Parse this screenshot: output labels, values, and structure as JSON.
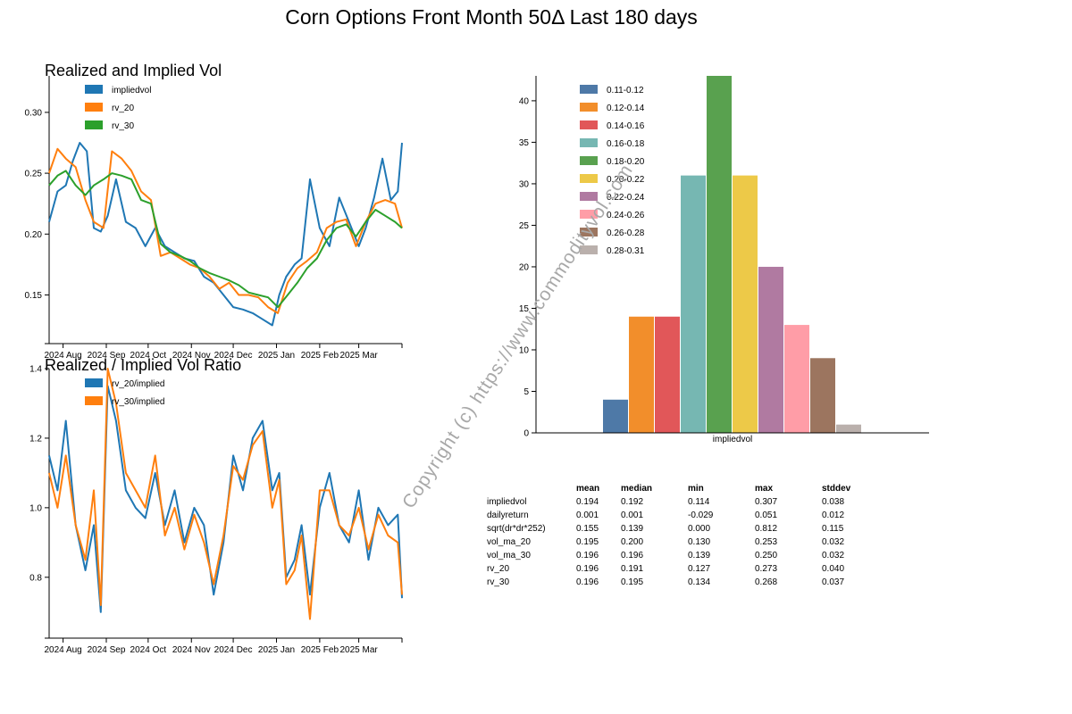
{
  "title": "Corn Options Front Month 50Δ Last 180 days",
  "watermark": "Copyright (c) https://www.commodityvol.com",
  "colors": {
    "blue": "#1f77b4",
    "orange": "#ff7f0e",
    "green": "#2ca02c",
    "hist": [
      "#4e79a7",
      "#f28e2b",
      "#e15759",
      "#76b7b2",
      "#59a14f",
      "#edc948",
      "#b07aa1",
      "#ff9da7",
      "#9c755f",
      "#bab0ac"
    ]
  },
  "chart_data": [
    {
      "type": "line",
      "title": "Realized and Implied Vol",
      "x_labels": [
        "2024 Aug",
        "2024 Sep",
        "2024 Oct",
        "2024 Nov",
        "2024 Dec",
        "2025 Jan",
        "2025 Feb",
        "2025 Mar"
      ],
      "x_range": [
        "2024-07-22",
        "2025-04-01"
      ],
      "ylim": [
        0.11,
        0.33
      ],
      "yticks": [
        "0.15",
        "0.20",
        "0.25",
        "0.30"
      ],
      "series": [
        {
          "name": "impliedvol",
          "color": "#1f77b4",
          "x": [
            "2024-07-22",
            "2024-07-28",
            "2024-08-03",
            "2024-08-08",
            "2024-08-13",
            "2024-08-18",
            "2024-08-23",
            "2024-08-28",
            "2024-09-02",
            "2024-09-08",
            "2024-09-15",
            "2024-09-22",
            "2024-09-29",
            "2024-10-06",
            "2024-10-13",
            "2024-10-20",
            "2024-10-27",
            "2024-11-03",
            "2024-11-10",
            "2024-11-17",
            "2024-11-24",
            "2024-12-01",
            "2024-12-08",
            "2024-12-15",
            "2024-12-22",
            "2024-12-29",
            "2025-01-03",
            "2025-01-08",
            "2025-01-14",
            "2025-01-19",
            "2025-01-25",
            "2025-02-01",
            "2025-02-08",
            "2025-02-15",
            "2025-02-22",
            "2025-03-01",
            "2025-03-06",
            "2025-03-12",
            "2025-03-18",
            "2025-03-24",
            "2025-03-29",
            "2025-04-01"
          ],
          "values": [
            0.21,
            0.235,
            0.24,
            0.26,
            0.275,
            0.268,
            0.205,
            0.202,
            0.215,
            0.245,
            0.21,
            0.205,
            0.19,
            0.205,
            0.19,
            0.185,
            0.18,
            0.178,
            0.165,
            0.16,
            0.15,
            0.14,
            0.138,
            0.135,
            0.13,
            0.125,
            0.15,
            0.165,
            0.175,
            0.18,
            0.245,
            0.205,
            0.19,
            0.23,
            0.21,
            0.19,
            0.205,
            0.23,
            0.262,
            0.228,
            0.235,
            0.275
          ]
        },
        {
          "name": "rv_20",
          "color": "#ff7f0e",
          "x": [
            "2024-07-22",
            "2024-07-28",
            "2024-08-03",
            "2024-08-10",
            "2024-08-17",
            "2024-08-23",
            "2024-08-30",
            "2024-09-05",
            "2024-09-12",
            "2024-09-19",
            "2024-09-26",
            "2024-10-03",
            "2024-10-10",
            "2024-10-17",
            "2024-10-24",
            "2024-10-31",
            "2024-11-07",
            "2024-11-14",
            "2024-11-21",
            "2024-11-28",
            "2024-12-05",
            "2024-12-12",
            "2024-12-19",
            "2024-12-26",
            "2025-01-02",
            "2025-01-09",
            "2025-01-16",
            "2025-01-23",
            "2025-01-30",
            "2025-02-06",
            "2025-02-13",
            "2025-02-20",
            "2025-02-27",
            "2025-03-06",
            "2025-03-13",
            "2025-03-20",
            "2025-03-27",
            "2025-04-01"
          ],
          "values": [
            0.25,
            0.27,
            0.262,
            0.255,
            0.228,
            0.21,
            0.205,
            0.268,
            0.262,
            0.252,
            0.235,
            0.228,
            0.182,
            0.185,
            0.18,
            0.175,
            0.172,
            0.165,
            0.155,
            0.16,
            0.15,
            0.15,
            0.148,
            0.14,
            0.135,
            0.16,
            0.172,
            0.178,
            0.185,
            0.205,
            0.21,
            0.212,
            0.19,
            0.21,
            0.225,
            0.228,
            0.225,
            0.205
          ]
        },
        {
          "name": "rv_30",
          "color": "#2ca02c",
          "x": [
            "2024-07-22",
            "2024-07-28",
            "2024-08-03",
            "2024-08-10",
            "2024-08-17",
            "2024-08-23",
            "2024-08-30",
            "2024-09-05",
            "2024-09-12",
            "2024-09-19",
            "2024-09-26",
            "2024-10-03",
            "2024-10-10",
            "2024-10-17",
            "2024-10-24",
            "2024-10-31",
            "2024-11-07",
            "2024-11-14",
            "2024-11-21",
            "2024-11-28",
            "2024-12-05",
            "2024-12-12",
            "2024-12-19",
            "2024-12-26",
            "2025-01-02",
            "2025-01-09",
            "2025-01-16",
            "2025-01-23",
            "2025-01-30",
            "2025-02-06",
            "2025-02-13",
            "2025-02-20",
            "2025-02-27",
            "2025-03-06",
            "2025-03-13",
            "2025-03-20",
            "2025-03-27",
            "2025-04-01"
          ],
          "values": [
            0.24,
            0.248,
            0.252,
            0.24,
            0.232,
            0.24,
            0.245,
            0.25,
            0.248,
            0.245,
            0.228,
            0.225,
            0.192,
            0.185,
            0.182,
            0.178,
            0.172,
            0.168,
            0.165,
            0.162,
            0.158,
            0.152,
            0.15,
            0.148,
            0.14,
            0.15,
            0.16,
            0.172,
            0.18,
            0.195,
            0.205,
            0.208,
            0.198,
            0.21,
            0.22,
            0.215,
            0.21,
            0.205
          ]
        }
      ]
    },
    {
      "type": "line",
      "title": "Realized / Implied Vol Ratio",
      "x_labels": [
        "2024 Aug",
        "2024 Sep",
        "2024 Oct",
        "2024 Nov",
        "2024 Dec",
        "2025 Jan",
        "2025 Feb",
        "2025 Mar"
      ],
      "x_range": [
        "2024-07-22",
        "2025-04-01"
      ],
      "ylim": [
        0.625,
        1.4
      ],
      "yticks": [
        "0.8",
        "1.0",
        "1.2",
        "1.4"
      ],
      "series": [
        {
          "name": "rv_20/implied",
          "color": "#1f77b4",
          "x": [
            "2024-07-22",
            "2024-07-28",
            "2024-08-03",
            "2024-08-10",
            "2024-08-17",
            "2024-08-23",
            "2024-08-28",
            "2024-09-02",
            "2024-09-08",
            "2024-09-15",
            "2024-09-22",
            "2024-09-29",
            "2024-10-06",
            "2024-10-13",
            "2024-10-20",
            "2024-10-27",
            "2024-11-03",
            "2024-11-10",
            "2024-11-17",
            "2024-11-24",
            "2024-12-01",
            "2024-12-08",
            "2024-12-15",
            "2024-12-22",
            "2024-12-29",
            "2025-01-03",
            "2025-01-08",
            "2025-01-14",
            "2025-01-19",
            "2025-01-25",
            "2025-02-01",
            "2025-02-08",
            "2025-02-15",
            "2025-02-22",
            "2025-03-01",
            "2025-03-08",
            "2025-03-15",
            "2025-03-22",
            "2025-03-29",
            "2025-04-01"
          ],
          "values": [
            1.15,
            1.05,
            1.25,
            0.95,
            0.82,
            0.95,
            0.7,
            1.35,
            1.25,
            1.05,
            1.0,
            0.97,
            1.1,
            0.95,
            1.05,
            0.9,
            1.0,
            0.95,
            0.75,
            0.9,
            1.15,
            1.05,
            1.2,
            1.25,
            1.05,
            1.1,
            0.8,
            0.85,
            0.95,
            0.75,
            1.0,
            1.1,
            0.95,
            0.9,
            1.05,
            0.85,
            1.0,
            0.95,
            0.98,
            0.74
          ]
        },
        {
          "name": "rv_30/implied",
          "color": "#ff7f0e",
          "x": [
            "2024-07-22",
            "2024-07-28",
            "2024-08-03",
            "2024-08-10",
            "2024-08-17",
            "2024-08-23",
            "2024-08-28",
            "2024-09-02",
            "2024-09-08",
            "2024-09-15",
            "2024-09-22",
            "2024-09-29",
            "2024-10-06",
            "2024-10-13",
            "2024-10-20",
            "2024-10-27",
            "2024-11-03",
            "2024-11-10",
            "2024-11-17",
            "2024-11-24",
            "2024-12-01",
            "2024-12-08",
            "2024-12-15",
            "2024-12-22",
            "2024-12-29",
            "2025-01-03",
            "2025-01-08",
            "2025-01-14",
            "2025-01-19",
            "2025-01-25",
            "2025-02-01",
            "2025-02-08",
            "2025-02-15",
            "2025-02-22",
            "2025-03-01",
            "2025-03-08",
            "2025-03-15",
            "2025-03-22",
            "2025-03-29",
            "2025-04-01"
          ],
          "values": [
            1.1,
            1.0,
            1.15,
            0.95,
            0.85,
            1.05,
            0.72,
            1.4,
            1.3,
            1.1,
            1.05,
            1.0,
            1.15,
            0.92,
            1.0,
            0.88,
            0.98,
            0.9,
            0.78,
            0.92,
            1.12,
            1.08,
            1.18,
            1.22,
            1.0,
            1.08,
            0.78,
            0.82,
            0.92,
            0.68,
            1.05,
            1.05,
            0.95,
            0.92,
            1.0,
            0.88,
            0.98,
            0.92,
            0.9,
            0.75
          ]
        }
      ]
    },
    {
      "type": "bar",
      "xlabel": "impliedvol",
      "ylim": [
        0,
        43
      ],
      "yticks": [
        "0",
        "5",
        "10",
        "15",
        "20",
        "25",
        "30",
        "35",
        "40"
      ],
      "categories": [
        "0.11-0.12",
        "0.12-0.14",
        "0.14-0.16",
        "0.16-0.18",
        "0.18-0.20",
        "0.20-0.22",
        "0.22-0.24",
        "0.24-0.26",
        "0.26-0.28",
        "0.28-0.31"
      ],
      "values": [
        4,
        14,
        14,
        31,
        43,
        31,
        20,
        13,
        9,
        1
      ]
    }
  ],
  "stats": {
    "columns": [
      "mean",
      "median",
      "min",
      "max",
      "stddev"
    ],
    "rows": [
      {
        "label": "impliedvol",
        "cells": [
          "0.194",
          "0.192",
          "0.114",
          "0.307",
          "0.038"
        ]
      },
      {
        "label": "dailyreturn",
        "cells": [
          "0.001",
          "0.001",
          "-0.029",
          "0.051",
          "0.012"
        ]
      },
      {
        "label": "sqrt(dr*dr*252)",
        "cells": [
          "0.155",
          "0.139",
          "0.000",
          "0.812",
          "0.115"
        ]
      },
      {
        "label": "vol_ma_20",
        "cells": [
          "0.195",
          "0.200",
          "0.130",
          "0.253",
          "0.032"
        ]
      },
      {
        "label": "vol_ma_30",
        "cells": [
          "0.196",
          "0.196",
          "0.139",
          "0.250",
          "0.032"
        ]
      },
      {
        "label": "rv_20",
        "cells": [
          "0.196",
          "0.191",
          "0.127",
          "0.273",
          "0.040"
        ]
      },
      {
        "label": "rv_30",
        "cells": [
          "0.196",
          "0.195",
          "0.134",
          "0.268",
          "0.037"
        ]
      }
    ]
  }
}
